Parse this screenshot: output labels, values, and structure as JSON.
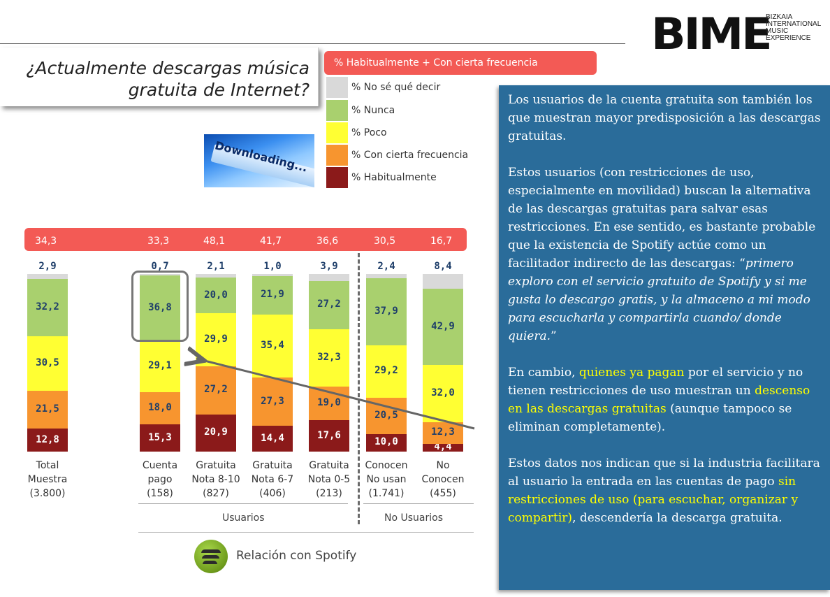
{
  "logo": {
    "word": "BIME",
    "subtitle": "BIZKAIA\nINTERNATIONAL\nMUSIC EXPERIENCE"
  },
  "question": "¿Actualmente descargas música\ngratuita de Internet?",
  "image_text": "Downloading...",
  "legend": {
    "header": "% Habitualmente + Con cierta frecuencia",
    "items": [
      {
        "label": "% No sé qué decir",
        "color": "#d9d9d9"
      },
      {
        "label": "% Nunca",
        "color": "#a9d06e"
      },
      {
        "label": "% Poco",
        "color": "#ffff33"
      },
      {
        "label": "% Con cierta frecuencia",
        "color": "#f7952f"
      },
      {
        "label": "% Habitualmente",
        "color": "#8b1a1a"
      }
    ]
  },
  "chart_data": {
    "type": "bar",
    "stacked": true,
    "categories": [
      "Total\nMuestra\n(3.800)",
      "Cuenta\npago\n(158)",
      "Gratuita\nNota 8-10\n(827)",
      "Gratuita\nNota 6-7\n(406)",
      "Gratuita\nNota 0-5\n(213)",
      "Conocen\nNo usan\n(1.741)",
      "No\nConocen\n(455)"
    ],
    "series": [
      {
        "name": "% Habitualmente",
        "values": [
          12.8,
          15.3,
          20.9,
          14.4,
          17.6,
          10.0,
          4.4
        ],
        "labels": [
          "12,8",
          "15,3",
          "20,9",
          "14,4",
          "17,6",
          "10,0",
          "4,4"
        ]
      },
      {
        "name": "% Con cierta frecuencia",
        "values": [
          21.5,
          18.0,
          27.2,
          27.3,
          19.0,
          20.5,
          12.3
        ],
        "labels": [
          "21,5",
          "18,0",
          "27,2",
          "27,3",
          "19,0",
          "20,5",
          "12,3"
        ]
      },
      {
        "name": "% Poco",
        "values": [
          30.5,
          29.1,
          29.9,
          35.4,
          32.3,
          29.2,
          32.0
        ],
        "labels": [
          "30,5",
          "29,1",
          "29,9",
          "35,4",
          "32,3",
          "29,2",
          "32,0"
        ]
      },
      {
        "name": "% Nunca",
        "values": [
          32.2,
          36.8,
          20.0,
          21.9,
          27.2,
          37.9,
          42.9
        ],
        "labels": [
          "32,2",
          "36,8",
          "20,0",
          "21,9",
          "27,2",
          "37,9",
          "42,9"
        ]
      },
      {
        "name": "% No sé qué decir",
        "values": [
          2.9,
          0.7,
          2.1,
          1.0,
          3.9,
          2.4,
          8.4
        ],
        "labels": [
          "2,9",
          "0,7",
          "2,1",
          "1,0",
          "3,9",
          "2,4",
          "8,4"
        ]
      }
    ],
    "totals": {
      "name": "% Habitualmente + Con cierta frecuencia",
      "values": [
        34.3,
        33.3,
        48.1,
        41.7,
        36.6,
        30.5,
        16.7
      ],
      "labels": [
        "34,3",
        "33,3",
        "48,1",
        "41,7",
        "36,6",
        "30,5",
        "16,7"
      ]
    },
    "groups": [
      {
        "label": "Usuarios"
      },
      {
        "label": "No Usuarios"
      }
    ],
    "ylim": [
      0,
      100
    ]
  },
  "spotify_label": "Relación con Spotify",
  "panel": {
    "p1": "Los usuarios de la cuenta gratuita son también los que muestran mayor predisposición a las descargas gratuitas.",
    "p2_a": "Estos usuarios (con restricciones de uso, especialmente en movilidad) buscan la alternativa de las descargas gratuitas para salvar esas restricciones. En ese sentido, es bastante probable que la existencia de Spotify actúe como un facilitador indirecto de las descargas: “",
    "p2_quote": "primero exploro con el servicio gratuito de Spotify y si me gusta lo descargo gratis, y la almaceno a mi modo para escucharla y compartirla cuando/ donde quiera.",
    "p2_b": "”",
    "p3_a": "En cambio, ",
    "p3_hl1": "quienes ya pagan",
    "p3_b": " por el servicio y no tienen restricciones de uso muestran un ",
    "p3_hl2": "descenso en las descargas gratuitas",
    "p3_c": " (aunque tampoco se eliminan completamente).",
    "p4_a": "Estos datos nos indican que si la industria facilitara al usuario la entrada en las cuentas de pago ",
    "p4_hl": "sin restricciones de uso (para escuchar, organizar y compartir)",
    "p4_b": ", descendería la descarga gratuita."
  }
}
